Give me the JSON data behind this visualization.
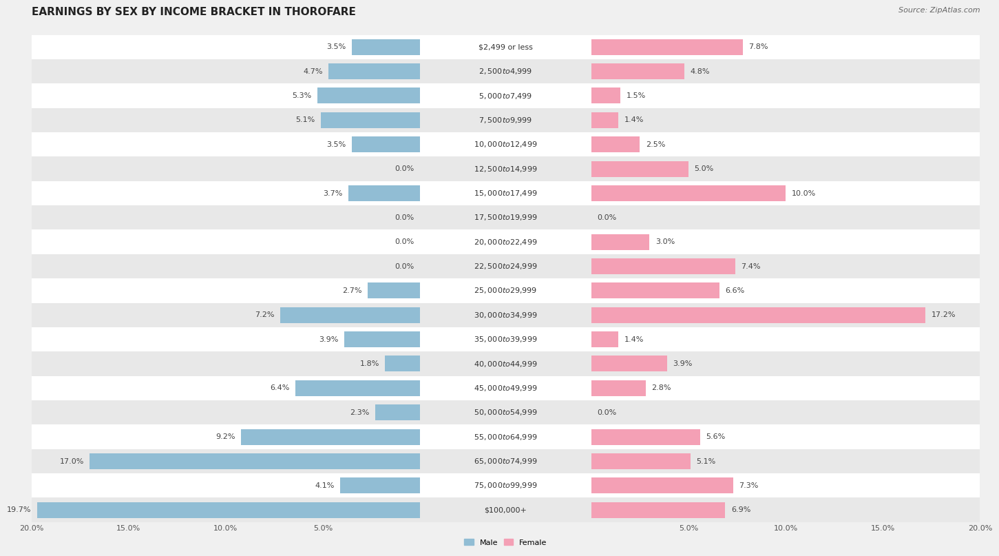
{
  "title": "EARNINGS BY SEX BY INCOME BRACKET IN THOROFARE",
  "source": "Source: ZipAtlas.com",
  "categories": [
    "$2,499 or less",
    "$2,500 to $4,999",
    "$5,000 to $7,499",
    "$7,500 to $9,999",
    "$10,000 to $12,499",
    "$12,500 to $14,999",
    "$15,000 to $17,499",
    "$17,500 to $19,999",
    "$20,000 to $22,499",
    "$22,500 to $24,999",
    "$25,000 to $29,999",
    "$30,000 to $34,999",
    "$35,000 to $39,999",
    "$40,000 to $44,999",
    "$45,000 to $49,999",
    "$50,000 to $54,999",
    "$55,000 to $64,999",
    "$65,000 to $74,999",
    "$75,000 to $99,999",
    "$100,000+"
  ],
  "male_values": [
    3.5,
    4.7,
    5.3,
    5.1,
    3.5,
    0.0,
    3.7,
    0.0,
    0.0,
    0.0,
    2.7,
    7.2,
    3.9,
    1.8,
    6.4,
    2.3,
    9.2,
    17.0,
    4.1,
    19.7
  ],
  "female_values": [
    7.8,
    4.8,
    1.5,
    1.4,
    2.5,
    5.0,
    10.0,
    0.0,
    3.0,
    7.4,
    6.6,
    17.2,
    1.4,
    3.9,
    2.8,
    0.0,
    5.6,
    5.1,
    7.3,
    6.9
  ],
  "male_color": "#91bdd4",
  "female_color": "#f4a0b5",
  "overflow_male_color": "#5a9abf",
  "overflow_female_color": "#e0607a",
  "axis_max": 20.0,
  "background_color": "#f0f0f0",
  "row_colors": [
    "#ffffff",
    "#e8e8e8"
  ],
  "title_fontsize": 11,
  "source_fontsize": 8,
  "tick_fontsize": 8,
  "category_fontsize": 8,
  "value_fontsize": 8
}
